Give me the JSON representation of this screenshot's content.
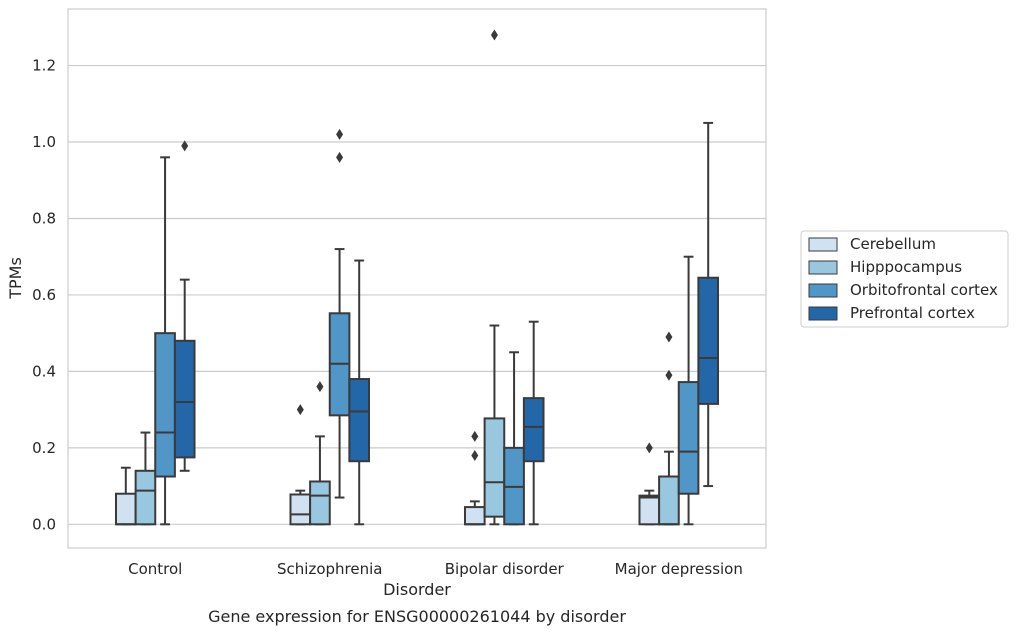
{
  "chart_data": {
    "type": "box",
    "caption": "Gene expression for ENSG00000261044 by disorder",
    "xlabel": "Disorder",
    "ylabel": "TPMs",
    "ylim": [
      -0.062,
      1.348
    ],
    "yticks": [
      0.0,
      0.2,
      0.4,
      0.6,
      0.8,
      1.0,
      1.2
    ],
    "ytick_labels": [
      "0.0",
      "0.2",
      "0.4",
      "0.6",
      "0.8",
      "1.0",
      "1.2"
    ],
    "grid": "horizontal",
    "legend_position": "right",
    "categories": [
      "Control",
      "Schizophrenia",
      "Bipolar disorder",
      "Major depression"
    ],
    "series": [
      {
        "name": "Cerebellum",
        "color": "#d0e1f1",
        "boxes": [
          {
            "whislo": 0.0,
            "q1": 0.0,
            "median": 0.0,
            "q3": 0.08,
            "whishi": 0.148,
            "fliers": []
          },
          {
            "whislo": 0.0,
            "q1": 0.0,
            "median": 0.026,
            "q3": 0.078,
            "whishi": 0.088,
            "fliers": [
              0.3
            ]
          },
          {
            "whislo": 0.0,
            "q1": 0.0,
            "median": 0.0,
            "q3": 0.045,
            "whishi": 0.06,
            "fliers": [
              0.18,
              0.23
            ]
          },
          {
            "whislo": 0.0,
            "q1": 0.0,
            "median": 0.07,
            "q3": 0.075,
            "whishi": 0.088,
            "fliers": [
              0.2
            ]
          }
        ]
      },
      {
        "name": "Hipppocampus",
        "color": "#9ac7e0",
        "boxes": [
          {
            "whislo": 0.0,
            "q1": 0.0,
            "median": 0.088,
            "q3": 0.14,
            "whishi": 0.24,
            "fliers": []
          },
          {
            "whislo": 0.0,
            "q1": 0.0,
            "median": 0.075,
            "q3": 0.112,
            "whishi": 0.23,
            "fliers": [
              0.36
            ]
          },
          {
            "whislo": 0.0,
            "q1": 0.02,
            "median": 0.11,
            "q3": 0.277,
            "whishi": 0.52,
            "fliers": [
              1.28
            ]
          },
          {
            "whislo": 0.0,
            "q1": 0.0,
            "median": 0.0,
            "q3": 0.125,
            "whishi": 0.19,
            "fliers": [
              0.39,
              0.49
            ]
          }
        ]
      },
      {
        "name": "Orbitofrontal cortex",
        "color": "#5097c7",
        "boxes": [
          {
            "whislo": 0.0,
            "q1": 0.125,
            "median": 0.24,
            "q3": 0.5,
            "whishi": 0.96,
            "fliers": []
          },
          {
            "whislo": 0.07,
            "q1": 0.285,
            "median": 0.42,
            "q3": 0.552,
            "whishi": 0.72,
            "fliers": [
              0.96,
              1.02
            ]
          },
          {
            "whislo": 0.0,
            "q1": 0.0,
            "median": 0.098,
            "q3": 0.2,
            "whishi": 0.45,
            "fliers": []
          },
          {
            "whislo": 0.0,
            "q1": 0.08,
            "median": 0.19,
            "q3": 0.372,
            "whishi": 0.7,
            "fliers": []
          }
        ]
      },
      {
        "name": "Prefrontal cortex",
        "color": "#2467a9",
        "boxes": [
          {
            "whislo": 0.14,
            "q1": 0.175,
            "median": 0.32,
            "q3": 0.48,
            "whishi": 0.64,
            "fliers": [
              0.99
            ]
          },
          {
            "whislo": 0.0,
            "q1": 0.165,
            "median": 0.295,
            "q3": 0.38,
            "whishi": 0.69,
            "fliers": []
          },
          {
            "whislo": 0.0,
            "q1": 0.165,
            "median": 0.255,
            "q3": 0.33,
            "whishi": 0.53,
            "fliers": []
          },
          {
            "whislo": 0.1,
            "q1": 0.315,
            "median": 0.435,
            "q3": 0.645,
            "whishi": 1.05,
            "fliers": []
          }
        ]
      }
    ]
  }
}
